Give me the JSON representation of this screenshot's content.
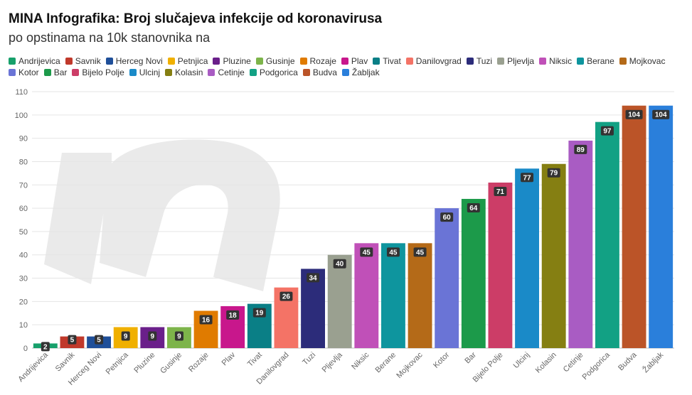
{
  "header": {
    "title": "MINA Infografika: Broj slučajeva infekcije od koronavirusa",
    "subtitle": "po opstinama na 10k stanovnika na"
  },
  "chart_data": {
    "type": "bar",
    "title": "MINA Infografika: Broj slučajeva infekcije od koronavirusa",
    "subtitle": "po opstinama na 10k stanovnika na",
    "xlabel": "",
    "ylabel": "",
    "ylim": [
      0,
      110
    ],
    "yticks": [
      0,
      10,
      20,
      30,
      40,
      50,
      60,
      70,
      80,
      90,
      100,
      110
    ],
    "grid": true,
    "legend_position": "top",
    "categories": [
      "Andrijevica",
      "Savnik",
      "Herceg Novi",
      "Petnjica",
      "Pluzine",
      "Gusinje",
      "Rozaje",
      "Plav",
      "Tivat",
      "Danilovgrad",
      "Tuzi",
      "Pljevlja",
      "Niksic",
      "Berane",
      "Mojkovac",
      "Kotor",
      "Bar",
      "Bijelo Polje",
      "Ulcinj",
      "Kolasin",
      "Cetinje",
      "Podgorica",
      "Budva",
      "Žabljak"
    ],
    "values": [
      2,
      5,
      5,
      9,
      9,
      9,
      16,
      18,
      19,
      26,
      34,
      40,
      45,
      45,
      45,
      60,
      64,
      71,
      77,
      79,
      89,
      97,
      104,
      104
    ],
    "colors": [
      "#17a06b",
      "#c0392b",
      "#1f4f99",
      "#f0b000",
      "#6a1f8a",
      "#7db44a",
      "#e07b00",
      "#c8178c",
      "#0a7f86",
      "#f47366",
      "#2c2c7a",
      "#9aa090",
      "#c050b8",
      "#0e959e",
      "#b46a18",
      "#6a74d6",
      "#1c9a4a",
      "#cc3d67",
      "#1a8ac8",
      "#857f12",
      "#a95cc3",
      "#12a184",
      "#bb5428",
      "#2a7fdb"
    ]
  }
}
